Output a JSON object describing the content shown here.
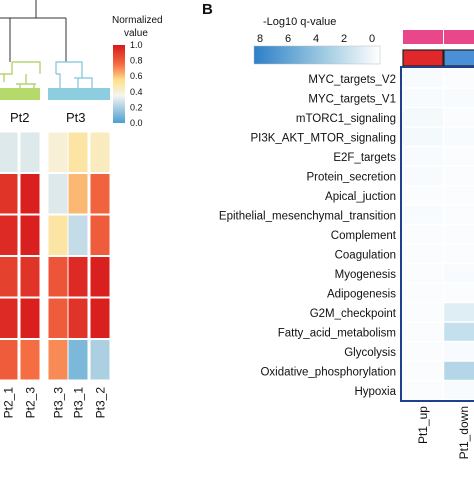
{
  "chart_data": [
    {
      "type": "heatmap",
      "panel": "",
      "legend_title": "Normalized value",
      "legend_ticks": [
        "1.0",
        "0.8",
        "0.6",
        "0.4",
        "0.2",
        "0.0"
      ],
      "legend_values": [
        1.0,
        0.8,
        0.6,
        0.4,
        0.2,
        0.0
      ],
      "groups": [
        {
          "label": "Pt2",
          "color": "#b5d96b"
        },
        {
          "label": "Pt3",
          "color": "#8ccde0"
        }
      ],
      "columns": [
        "Pt2_1",
        "Pt2_3",
        "Pt3_3",
        "Pt3_1",
        "Pt3_2"
      ],
      "column_groups": [
        0,
        0,
        1,
        1,
        1
      ],
      "rows": 6,
      "values": [
        [
          0.3,
          0.3,
          0.4,
          0.5,
          0.45
        ],
        [
          0.92,
          0.98,
          0.3,
          0.62,
          0.78
        ],
        [
          0.95,
          0.98,
          0.5,
          0.25,
          0.8
        ],
        [
          0.88,
          0.92,
          0.82,
          0.95,
          0.98
        ],
        [
          0.95,
          0.98,
          0.8,
          0.92,
          0.98
        ],
        [
          0.8,
          0.75,
          0.7,
          0.1,
          0.2
        ]
      ]
    },
    {
      "type": "heatmap",
      "panel": "B",
      "legend_title": "-Log10 q-value",
      "legend_ticks": [
        "8",
        "6",
        "4",
        "2",
        "0"
      ],
      "legend_values": [
        8,
        6,
        4,
        2,
        0
      ],
      "rows": [
        "MYC_targets_V2",
        "MYC_targets_V1",
        "mTORC1_signaling",
        "PI3K_AKT_MTOR_signaling",
        "E2F_targets",
        "Protein_secretion",
        "Apical_juction",
        "Epithelial_mesenchymal_transition",
        "Complement",
        "Coagulation",
        "Myogenesis",
        "Adipogenesis",
        "G2M_checkpoint",
        "Fatty_acid_metabolism",
        "Glycolysis",
        "Oxidative_phosphorylation",
        "Hypoxia"
      ],
      "columns": [
        "Pt1_up",
        "Pt1_down"
      ],
      "annotation_colors": [
        "#e8488a",
        "#e8488a"
      ],
      "direction_colors": [
        "#e0282a",
        "#4a90d9"
      ],
      "values": [
        [
          0.3,
          0.2
        ],
        [
          0.3,
          0.3
        ],
        [
          0.4,
          0.2
        ],
        [
          0.4,
          0.3
        ],
        [
          0.3,
          0.2
        ],
        [
          0.3,
          0.2
        ],
        [
          0.2,
          0.2
        ],
        [
          0.3,
          0.2
        ],
        [
          0.2,
          0.2
        ],
        [
          0.2,
          0.2
        ],
        [
          0.2,
          0.3
        ],
        [
          0.2,
          0.2
        ],
        [
          0.2,
          1.2
        ],
        [
          0.2,
          2.2
        ],
        [
          0.2,
          0.3
        ],
        [
          0.2,
          2.8
        ],
        [
          0.2,
          0.3
        ]
      ]
    }
  ]
}
